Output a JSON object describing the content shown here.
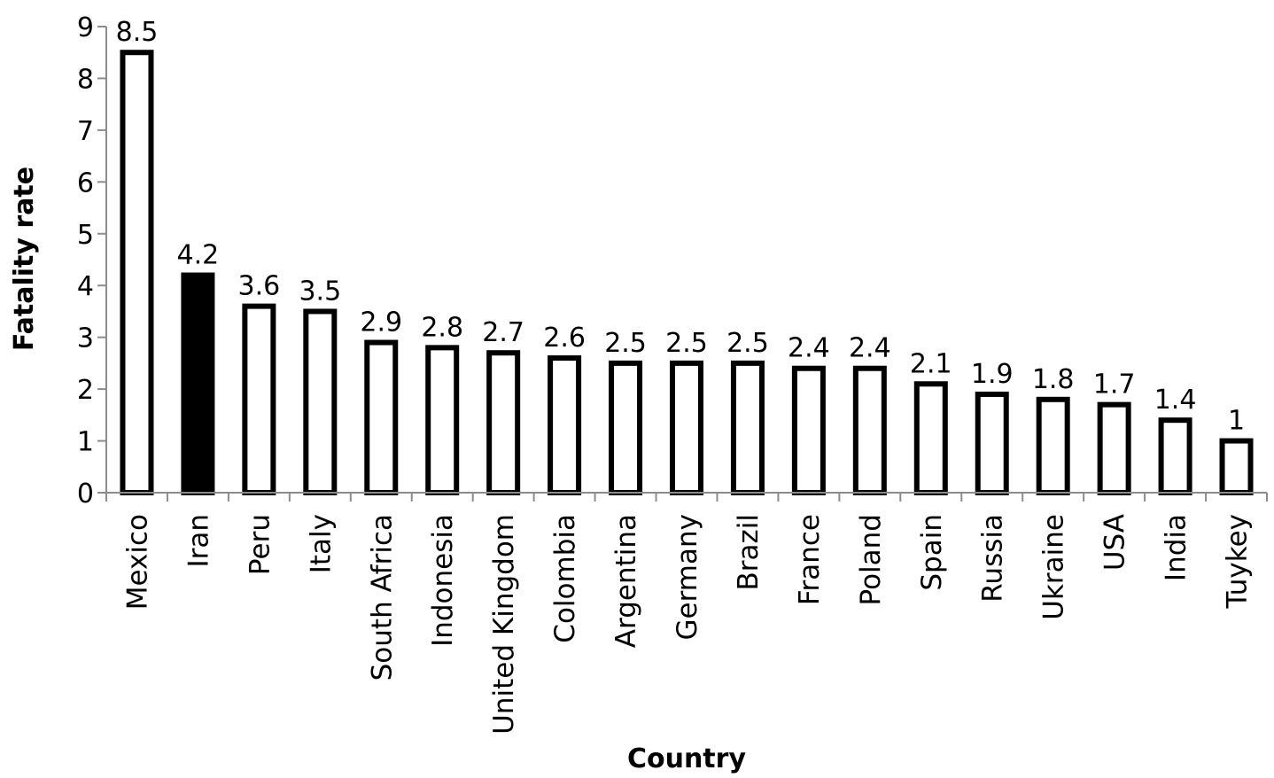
{
  "chart_data": {
    "type": "bar",
    "xlabel": "Country",
    "ylabel": "Fatality rate",
    "ylim": [
      0,
      9
    ],
    "yticks": [
      0,
      1,
      2,
      3,
      4,
      5,
      6,
      7,
      8,
      9
    ],
    "grid": false,
    "legend": "none",
    "categories": [
      "Mexico",
      "Iran",
      "Peru",
      "Italy",
      "South Africa",
      "Indonesia",
      "United Kingdom",
      "Colombia",
      "Argentina",
      "Germany",
      "Brazil",
      "France",
      "Poland",
      "Spain",
      "Russia",
      "Ukraine",
      "USA",
      "India",
      "Tuykey"
    ],
    "values": [
      8.5,
      4.2,
      3.6,
      3.5,
      2.9,
      2.8,
      2.7,
      2.6,
      2.5,
      2.5,
      2.5,
      2.4,
      2.4,
      2.1,
      1.9,
      1.8,
      1.7,
      1.4,
      1
    ],
    "data_labels": [
      "8.5",
      "4.2",
      "3.6",
      "3.5",
      "2.9",
      "2.8",
      "2.7",
      "2.6",
      "2.5",
      "2.5",
      "2.5",
      "2.4",
      "2.4",
      "2.1",
      "1.9",
      "1.8",
      "1.7",
      "1.4",
      "1"
    ],
    "highlight_category": "Iran",
    "colors": {
      "bar_fill": "#ffffff",
      "bar_stroke": "#000000",
      "highlight_fill": "#000000",
      "axis": "#8c8c8c"
    }
  }
}
